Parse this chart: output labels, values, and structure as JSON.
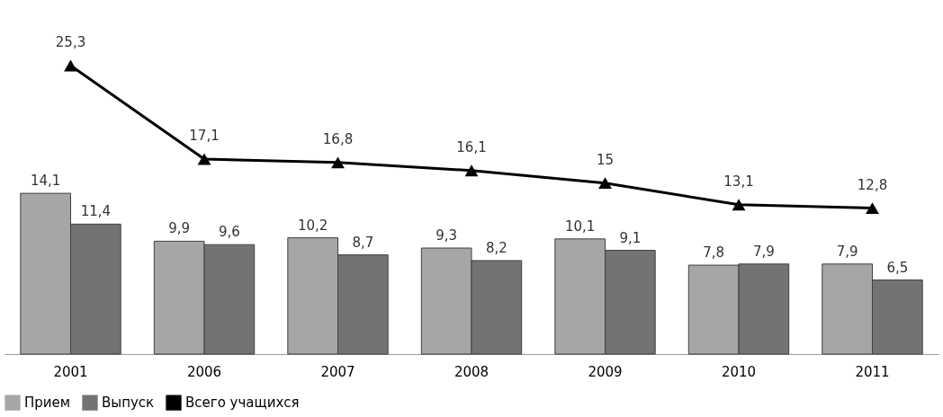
{
  "chart_data": {
    "type": "bar",
    "categories": [
      "2001",
      "2006",
      "2007",
      "2008",
      "2009",
      "2010",
      "2011"
    ],
    "series": [
      {
        "name": "Прием",
        "color": "#a6a6a6",
        "values": [
          14.1,
          9.9,
          10.2,
          9.3,
          10.1,
          7.8,
          7.9
        ],
        "value_labels": [
          "14,1",
          "9,9",
          "10,2",
          "9,3",
          "10,1",
          "7,8",
          "7,9"
        ]
      },
      {
        "name": "Выпуск",
        "color": "#737373",
        "values": [
          11.4,
          9.6,
          8.7,
          8.2,
          9.1,
          7.9,
          6.5
        ],
        "value_labels": [
          "11,4",
          "9,6",
          "8,7",
          "8,2",
          "9,1",
          "7,9",
          "6,5"
        ]
      },
      {
        "name": "Всего учащихся",
        "type": "line",
        "color": "#000000",
        "marker": "triangle",
        "line_style": "solid",
        "values": [
          25.3,
          17.1,
          16.8,
          16.1,
          15,
          13.1,
          12.8
        ],
        "value_labels": [
          "25,3",
          "17,1",
          "16,8",
          "16,1",
          "15",
          "13,1",
          "12,8"
        ]
      }
    ],
    "legend": "bottom",
    "grid": false
  }
}
